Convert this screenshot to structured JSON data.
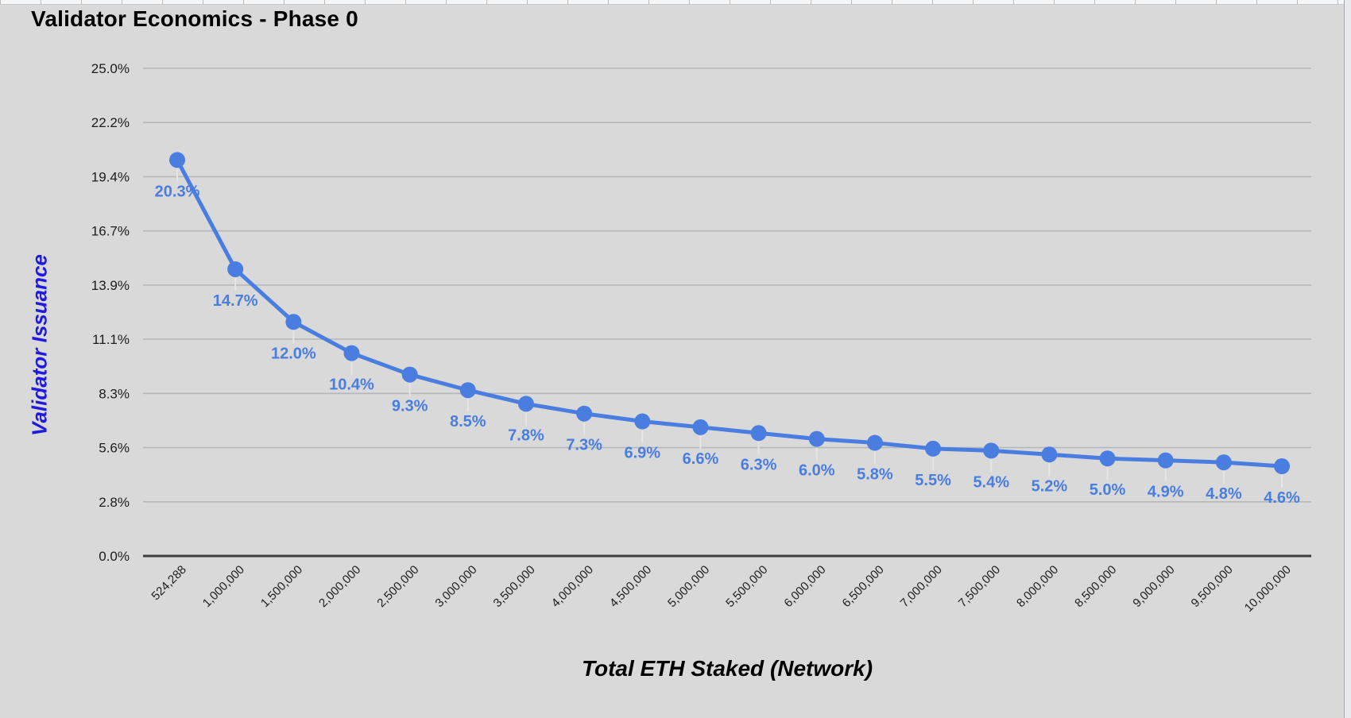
{
  "chart_data": {
    "type": "line",
    "title": "Validator Economics - Phase 0",
    "xlabel": "Total ETH Staked (Network)",
    "ylabel": "Validator Issuance",
    "categories": [
      "524,288",
      "1,000,000",
      "1,500,000",
      "2,000,000",
      "2,500,000",
      "3,000,000",
      "3,500,000",
      "4,000,000",
      "4,500,000",
      "5,000,000",
      "5,500,000",
      "6,000,000",
      "6,500,000",
      "7,000,000",
      "7,500,000",
      "8,000,000",
      "8,500,000",
      "9,000,000",
      "9,500,000",
      "10,000,000"
    ],
    "series": [
      {
        "name": "Validator Issuance",
        "values": [
          20.3,
          14.7,
          12.0,
          10.4,
          9.3,
          8.5,
          7.8,
          7.3,
          6.9,
          6.6,
          6.3,
          6.0,
          5.8,
          5.5,
          5.4,
          5.2,
          5.0,
          4.9,
          4.8,
          4.6
        ],
        "point_labels": [
          "20.3%",
          "14.7%",
          "12.0%",
          "10.4%",
          "9.3%",
          "8.5%",
          "7.8%",
          "7.3%",
          "6.9%",
          "6.6%",
          "6.3%",
          "6.0%",
          "5.8%",
          "5.5%",
          "5.4%",
          "5.2%",
          "5.0%",
          "4.9%",
          "4.8%",
          "4.6%"
        ]
      }
    ],
    "y_tick_labels": [
      "25.0%",
      "22.2%",
      "19.4%",
      "16.7%",
      "13.9%",
      "11.1%",
      "8.3%",
      "5.6%",
      "2.8%",
      "0.0%"
    ],
    "ylim": [
      0,
      25
    ],
    "grid": true,
    "legend_position": "none",
    "colors": {
      "series": "#4a7de0",
      "data_label": "#4a7de0",
      "title": "#000000",
      "x_axis_title": "#000000",
      "y_axis_title": "#2019e0",
      "grid_line": "#b5b8ba",
      "axis_line": "#3d3d3d",
      "tick_label": "#1c1c1c",
      "background": "#d9d9d9"
    }
  }
}
